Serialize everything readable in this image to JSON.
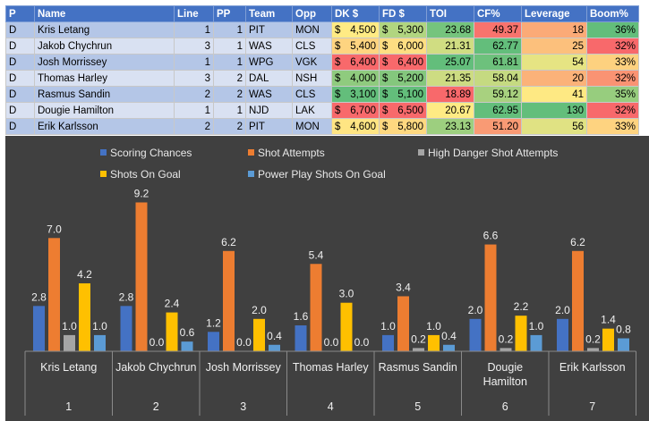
{
  "table": {
    "headers": [
      "P",
      "Name",
      "Line",
      "PP",
      "Team",
      "Opp",
      "DK $",
      "FD $",
      "TOI",
      "CF%",
      "Leverage",
      "Boom%"
    ],
    "rows": [
      {
        "pos": "D",
        "name": "Kris Letang",
        "line": "1",
        "pp": "1",
        "team": "PIT",
        "opp": "MON",
        "dk": "4,500",
        "fd": "5,300",
        "toi": "23.68",
        "cf": "49.37",
        "lev": "18",
        "boom": "36%",
        "dk_color": "#ffeb84",
        "fd_color": "#b1d580",
        "toi_color": "#75c47d",
        "cf_color": "#f8736d",
        "lev_color": "#fbaa77",
        "boom_color": "#63be7b"
      },
      {
        "pos": "D",
        "name": "Jakob Chychrun",
        "line": "3",
        "pp": "1",
        "team": "WAS",
        "opp": "CLS",
        "dk": "5,400",
        "fd": "6,000",
        "toi": "21.31",
        "cf": "62.77",
        "lev": "25",
        "boom": "32%",
        "dk_color": "#fed480",
        "fd_color": "#fede82",
        "toi_color": "#d0dd82",
        "cf_color": "#63be7b",
        "lev_color": "#fcc07c",
        "boom_color": "#f8696b"
      },
      {
        "pos": "D",
        "name": "Josh Morrissey",
        "line": "1",
        "pp": "1",
        "team": "WPG",
        "opp": "VGK",
        "dk": "6,400",
        "fd": "6,400",
        "toi": "25.07",
        "cf": "61.81",
        "lev": "54",
        "boom": "33%",
        "dk_color": "#f8696b",
        "fd_color": "#f8696b",
        "toi_color": "#63be7b",
        "cf_color": "#6dc17c",
        "lev_color": "#e6e483",
        "boom_color": "#fdd17f"
      },
      {
        "pos": "D",
        "name": "Thomas Harley",
        "line": "3",
        "pp": "2",
        "team": "DAL",
        "opp": "NSH",
        "dk": "4,000",
        "fd": "5,200",
        "toi": "21.35",
        "cf": "58.04",
        "lev": "20",
        "boom": "32%",
        "dk_color": "#8fcb7e",
        "fd_color": "#84c77d",
        "toi_color": "#cddc82",
        "cf_color": "#c5da81",
        "lev_color": "#fbb279",
        "boom_color": "#fa9373"
      },
      {
        "pos": "D",
        "name": "Rasmus Sandin",
        "line": "2",
        "pp": "2",
        "team": "WAS",
        "opp": "CLS",
        "dk": "3,100",
        "fd": "5,100",
        "toi": "18.89",
        "cf": "59.12",
        "lev": "41",
        "boom": "35%",
        "dk_color": "#63be7b",
        "fd_color": "#63be7b",
        "toi_color": "#f8696b",
        "cf_color": "#a8d17f",
        "lev_color": "#fee983",
        "boom_color": "#97cd7e"
      },
      {
        "pos": "D",
        "name": "Dougie Hamilton",
        "line": "1",
        "pp": "1",
        "team": "NJD",
        "opp": "LAK",
        "dk": "6,700",
        "fd": "6,500",
        "toi": "20.67",
        "cf": "62.95",
        "lev": "130",
        "boom": "32%",
        "dk_color": "#f8696b",
        "fd_color": "#f8696b",
        "toi_color": "#feeb84",
        "cf_color": "#63be7b",
        "lev_color": "#63be7b",
        "boom_color": "#f8696b"
      },
      {
        "pos": "D",
        "name": "Erik Karlsson",
        "line": "2",
        "pp": "2",
        "team": "PIT",
        "opp": "MON",
        "dk": "4,600",
        "fd": "5,800",
        "toi": "23.13",
        "cf": "51.20",
        "lev": "56",
        "boom": "33%",
        "dk_color": "#ffe583",
        "fd_color": "#fed880",
        "toi_color": "#9dcf7f",
        "cf_color": "#f99a74",
        "lev_color": "#e0e283",
        "boom_color": "#fed380"
      }
    ]
  },
  "chart_data": {
    "type": "bar",
    "legend": [
      "Scoring Chances",
      "Shot Attempts",
      "High Danger Shot Attempts",
      "Shots On Goal",
      "Power Play Shots On Goal"
    ],
    "colors": [
      "#4472c4",
      "#ed7d31",
      "#a5a5a5",
      "#ffc000",
      "#5b9bd5"
    ],
    "categories": [
      {
        "name": "Kris Letang",
        "index": "1"
      },
      {
        "name": "Jakob Chychrun",
        "index": "2"
      },
      {
        "name": "Josh Morrissey",
        "index": "3"
      },
      {
        "name": "Thomas Harley",
        "index": "4"
      },
      {
        "name": "Rasmus Sandin",
        "index": "5"
      },
      {
        "name": "Dougie Hamilton",
        "index": "6"
      },
      {
        "name": "Erik Karlsson",
        "index": "7"
      }
    ],
    "series": [
      {
        "name": "Scoring Chances",
        "values": [
          2.8,
          2.8,
          1.2,
          1.6,
          1.0,
          2.0,
          2.0
        ]
      },
      {
        "name": "Shot Attempts",
        "values": [
          7.0,
          9.2,
          6.2,
          5.4,
          3.4,
          6.6,
          6.2
        ]
      },
      {
        "name": "High Danger Shot Attempts",
        "values": [
          1.0,
          0.0,
          0.0,
          0.0,
          0.2,
          0.2,
          0.2
        ]
      },
      {
        "name": "Shots On Goal",
        "values": [
          4.2,
          2.4,
          2.0,
          3.0,
          1.0,
          2.2,
          1.4
        ]
      },
      {
        "name": "Power Play Shots On Goal",
        "values": [
          1.0,
          0.6,
          0.4,
          0.0,
          0.4,
          1.0,
          0.8
        ]
      }
    ],
    "ylim": [
      0,
      10
    ]
  }
}
